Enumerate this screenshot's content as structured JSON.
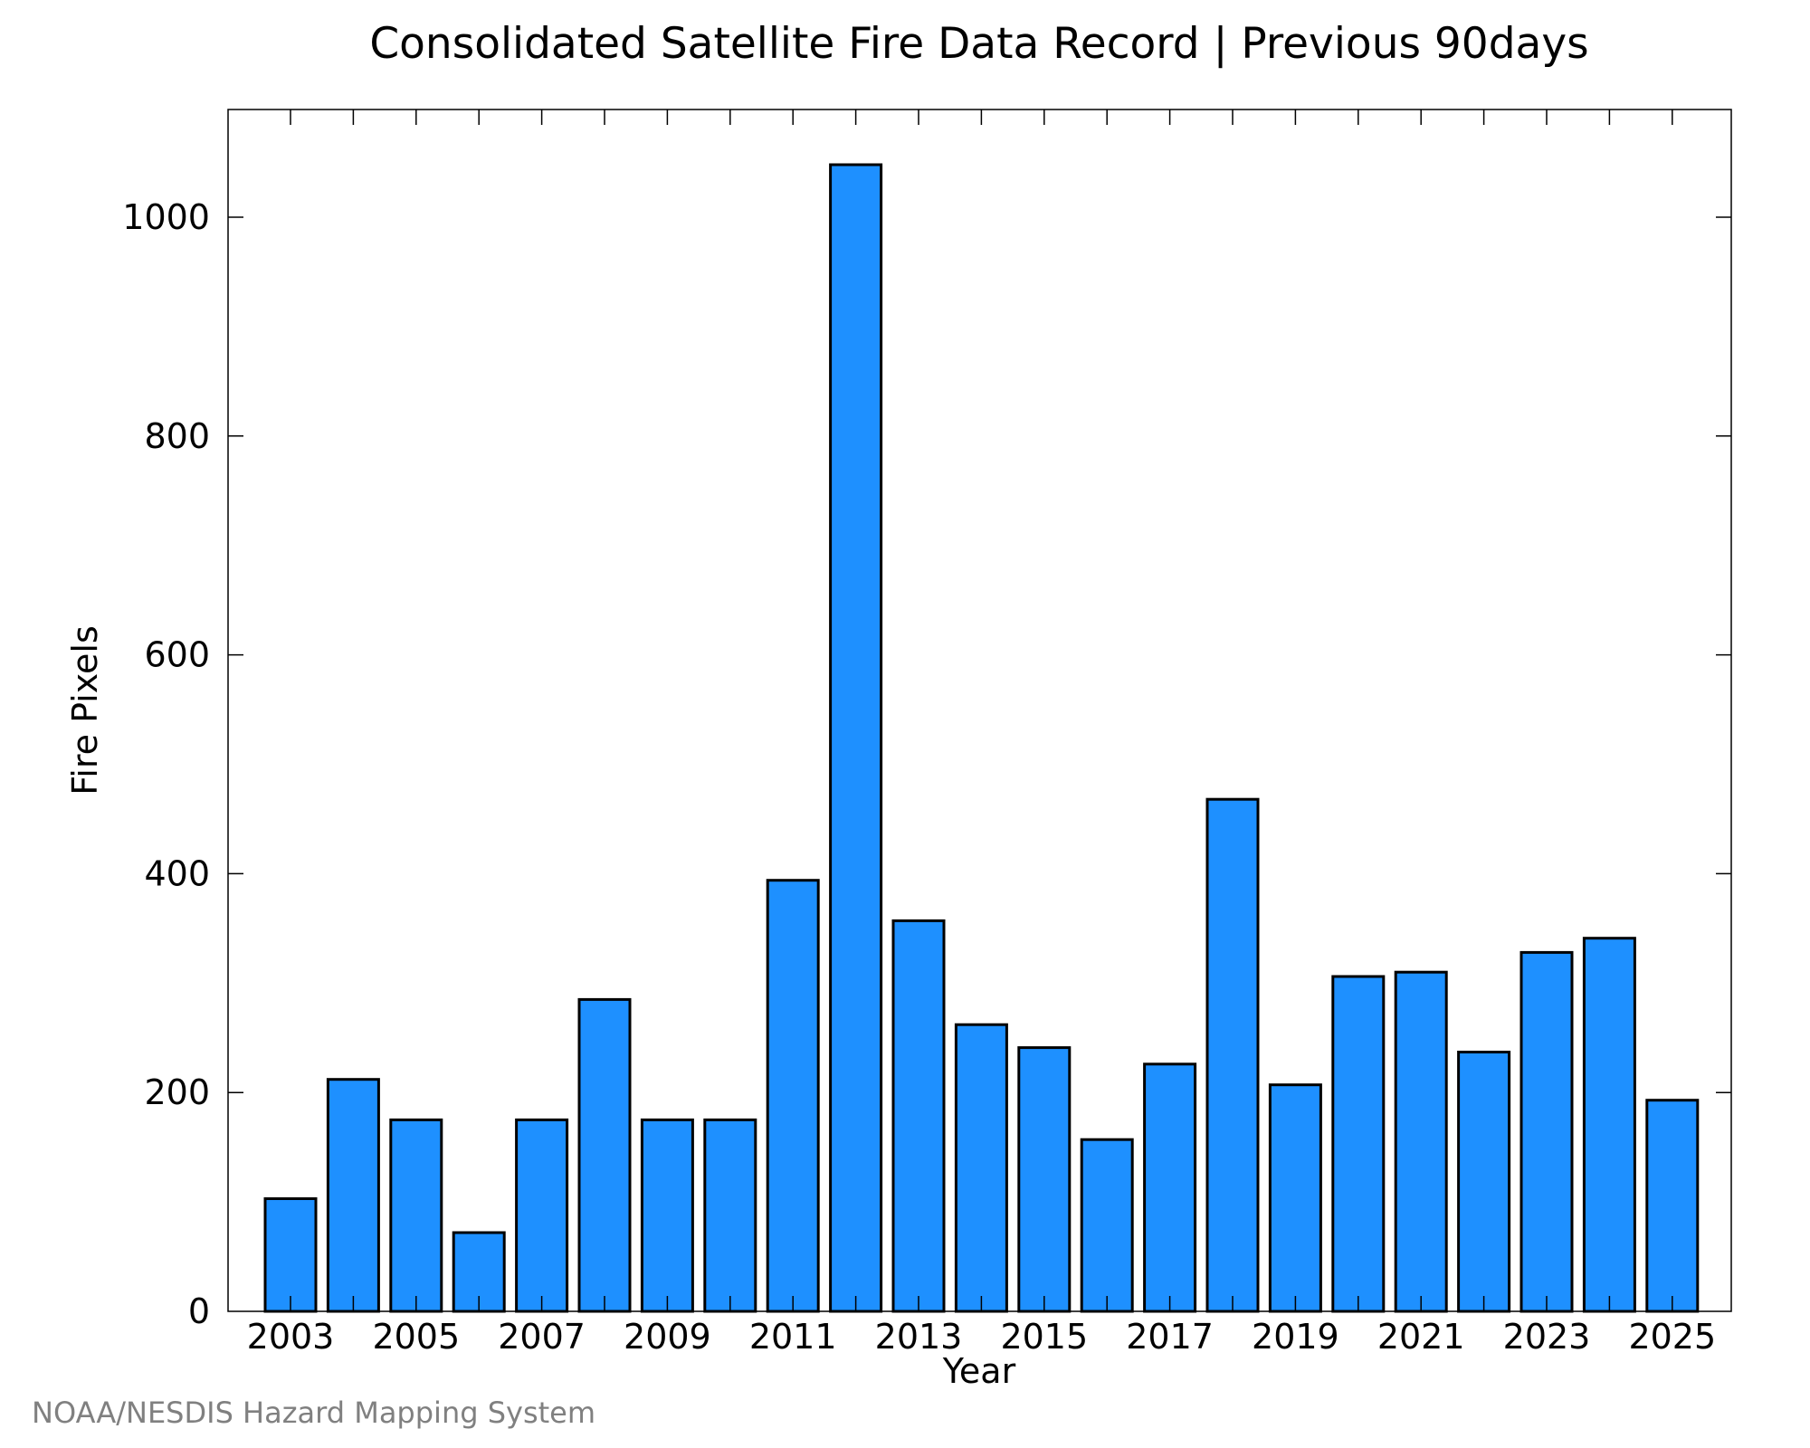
{
  "credit": "NOAA/NESDIS Hazard Mapping System",
  "colors": {
    "bar_fill": "#1e90ff",
    "bar_stroke": "#000000",
    "axis": "#000000",
    "credit": "#808080"
  },
  "chart_data": {
    "type": "bar",
    "title": "Consolidated Satellite Fire Data Record | Previous 90days",
    "xlabel": "Year",
    "ylabel": "Fire Pixels",
    "categories": [
      "2003",
      "2004",
      "2005",
      "2006",
      "2007",
      "2008",
      "2009",
      "2010",
      "2011",
      "2012",
      "2013",
      "2014",
      "2015",
      "2016",
      "2017",
      "2018",
      "2019",
      "2020",
      "2021",
      "2022",
      "2023",
      "2024",
      "2025"
    ],
    "values": [
      103,
      212,
      175,
      72,
      175,
      285,
      175,
      175,
      394,
      1048,
      357,
      262,
      241,
      157,
      226,
      468,
      207,
      306,
      310,
      237,
      328,
      341,
      193
    ],
    "x_tick_labels": [
      "2003",
      "2005",
      "2007",
      "2009",
      "2011",
      "2013",
      "2015",
      "2017",
      "2019",
      "2021",
      "2023",
      "2025"
    ],
    "y_tick_labels": [
      "0",
      "200",
      "400",
      "600",
      "800",
      "1000"
    ],
    "y_ticks": [
      0,
      200,
      400,
      600,
      800,
      1000
    ],
    "ylim": [
      0,
      1100
    ],
    "grid": false,
    "legend": "none"
  }
}
